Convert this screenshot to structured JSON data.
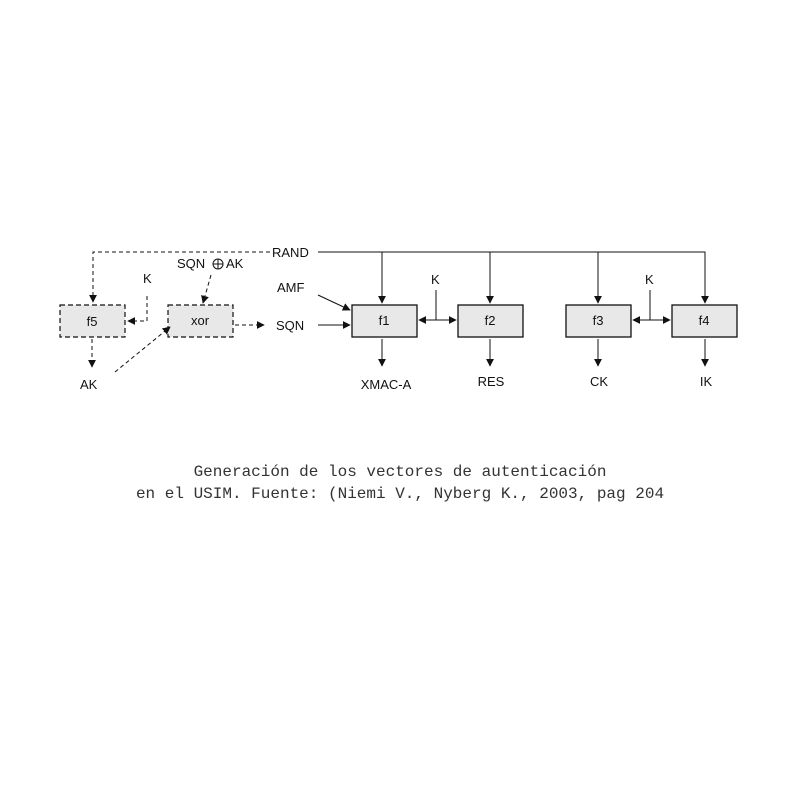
{
  "diagram": {
    "boxes": {
      "f5": "f5",
      "xor": "xor",
      "f1": "f1",
      "f2": "f2",
      "f3": "f3",
      "f4": "f4"
    },
    "inputs": {
      "rand": "RAND",
      "amf": "AMF",
      "sqn": "SQN",
      "sqn_xor_ak_left": "SQN",
      "sqn_xor_ak_right": "AK",
      "k_f5": "K",
      "k_f1f2": "K",
      "k_f3f4": "K"
    },
    "outputs": {
      "ak": "AK",
      "xmac": "XMAC-A",
      "res": "RES",
      "ck": "CK",
      "ik": "IK"
    }
  },
  "caption": {
    "line1": "Generación de los vectores de autenticación",
    "line2": "en el USIM. Fuente: (Niemi V., Nyberg K., 2003, pag 204"
  }
}
